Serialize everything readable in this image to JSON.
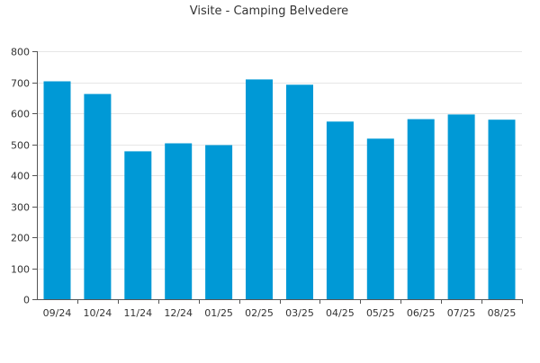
{
  "chart_data": {
    "type": "bar",
    "title": "Visite - Camping Belvedere",
    "xlabel": "",
    "ylabel": "",
    "categories": [
      "09/24",
      "10/24",
      "11/24",
      "12/24",
      "01/25",
      "02/25",
      "03/25",
      "04/25",
      "05/25",
      "06/25",
      "07/25",
      "08/25"
    ],
    "values": [
      703,
      662,
      477,
      503,
      497,
      709,
      692,
      573,
      518,
      581,
      596,
      579
    ],
    "ylim": [
      0,
      800
    ],
    "yticks": [
      "0",
      "100",
      "200",
      "300",
      "400",
      "500",
      "600",
      "700",
      "800"
    ],
    "grid": true,
    "legend": "none",
    "colors": {
      "bar": "#0099d6",
      "grid": "#e6e6e6",
      "axis": "#555555",
      "text": "#333333"
    }
  }
}
